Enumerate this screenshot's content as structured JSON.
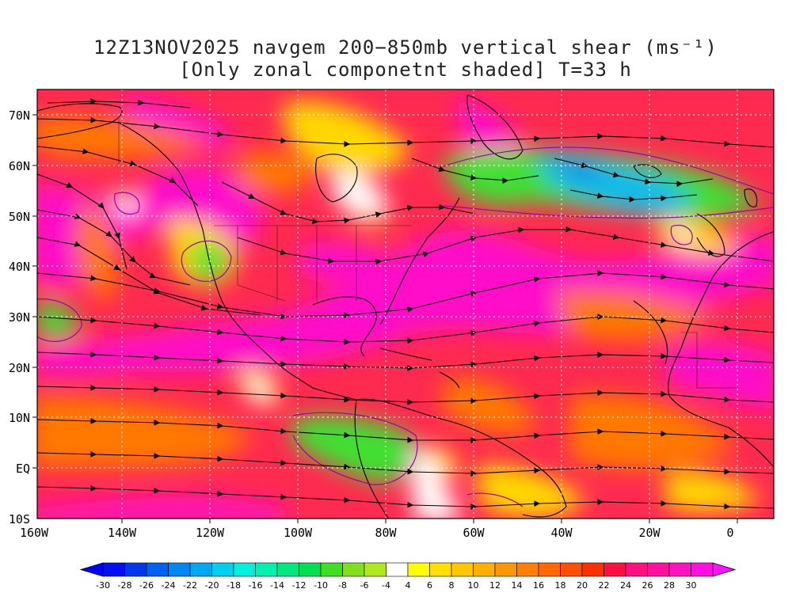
{
  "title": {
    "line1": "12Z13NOV2025 navgem 200−850mb vertical shear (ms⁻¹)",
    "line2": "[Only zonal componetnt shaded] T=33 h"
  },
  "axes": {
    "lat_labels": [
      "70N",
      "60N",
      "50N",
      "40N",
      "30N",
      "20N",
      "10N",
      "EQ",
      "10S"
    ],
    "lon_labels": [
      "160W",
      "140W",
      "120W",
      "100W",
      "80W",
      "60W",
      "40W",
      "20W",
      "0"
    ]
  },
  "colorbar": {
    "labels": [
      "-30",
      "-28",
      "-26",
      "-24",
      "-22",
      "-20",
      "-18",
      "-16",
      "-14",
      "-12",
      "-10",
      "-8",
      "-6",
      "-4",
      "4",
      "6",
      "8",
      "10",
      "12",
      "14",
      "16",
      "18",
      "20",
      "22",
      "24",
      "26",
      "28",
      "30"
    ],
    "colors": [
      "#0010f0",
      "#0038f0",
      "#0060f0",
      "#0088f0",
      "#00a8f0",
      "#00d0f0",
      "#00f0e0",
      "#00f0b0",
      "#00e880",
      "#00e050",
      "#40e020",
      "#80e020",
      "#b0e820",
      "#ffffff",
      "#ffff00",
      "#ffe000",
      "#ffc800",
      "#ffb000",
      "#ff9800",
      "#ff8000",
      "#ff6800",
      "#ff5000",
      "#ff3000",
      "#ff1040",
      "#ff1080",
      "#ff10a0",
      "#ff10c0",
      "#ff10e0"
    ],
    "under_color": "#0000ff",
    "over_color": "#ff10ff"
  },
  "colors": {
    "magenta": "#ff10c8",
    "red": "#ff2a50",
    "orange": "#ff7800",
    "yellow": "#ffd800",
    "green": "#40e030",
    "blue": "#1060f0",
    "coast": "#000000",
    "contour": "#a000a0",
    "grid": "#ffffff"
  }
}
